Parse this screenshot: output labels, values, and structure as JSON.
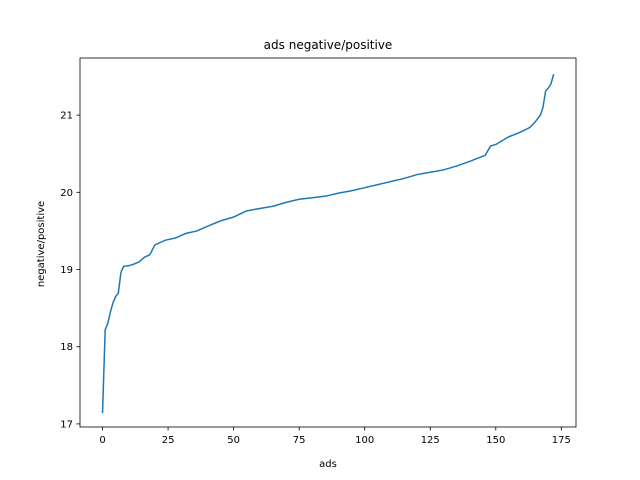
{
  "chart_data": {
    "type": "line",
    "title": "ads negative/positive",
    "xlabel": "ads",
    "ylabel": "negative/positive",
    "xlim": [
      -8.6,
      180.6
    ],
    "ylim": [
      16.96,
      21.74
    ],
    "xticks": [
      0,
      25,
      50,
      75,
      100,
      125,
      150,
      175
    ],
    "yticks": [
      17,
      18,
      19,
      20,
      21
    ],
    "grid": false,
    "legend": "none",
    "series": [
      {
        "color": "#1f77b4",
        "points": [
          [
            0,
            17.15
          ],
          [
            1,
            18.22
          ],
          [
            2,
            18.3
          ],
          [
            3,
            18.45
          ],
          [
            4,
            18.57
          ],
          [
            5,
            18.65
          ],
          [
            6,
            18.69
          ],
          [
            7,
            18.96
          ],
          [
            8,
            19.04
          ],
          [
            10,
            19.05
          ],
          [
            12,
            19.07
          ],
          [
            14,
            19.1
          ],
          [
            16,
            19.16
          ],
          [
            18,
            19.19
          ],
          [
            20,
            19.32
          ],
          [
            22,
            19.35
          ],
          [
            24,
            19.38
          ],
          [
            28,
            19.41
          ],
          [
            32,
            19.47
          ],
          [
            36,
            19.5
          ],
          [
            40,
            19.56
          ],
          [
            45,
            19.63
          ],
          [
            50,
            19.68
          ],
          [
            55,
            19.76
          ],
          [
            60,
            19.79
          ],
          [
            65,
            19.82
          ],
          [
            70,
            19.87
          ],
          [
            75,
            19.91
          ],
          [
            80,
            19.93
          ],
          [
            85,
            19.95
          ],
          [
            90,
            19.99
          ],
          [
            95,
            20.02
          ],
          [
            100,
            20.06
          ],
          [
            105,
            20.1
          ],
          [
            110,
            20.14
          ],
          [
            115,
            20.18
          ],
          [
            120,
            20.23
          ],
          [
            125,
            20.26
          ],
          [
            130,
            20.29
          ],
          [
            135,
            20.34
          ],
          [
            140,
            20.4
          ],
          [
            143,
            20.44
          ],
          [
            146,
            20.48
          ],
          [
            148,
            20.6
          ],
          [
            150,
            20.62
          ],
          [
            152,
            20.66
          ],
          [
            155,
            20.72
          ],
          [
            158,
            20.76
          ],
          [
            160,
            20.79
          ],
          [
            163,
            20.84
          ],
          [
            165,
            20.91
          ],
          [
            167,
            21.0
          ],
          [
            168,
            21.1
          ],
          [
            169,
            21.31
          ],
          [
            170,
            21.35
          ],
          [
            171,
            21.4
          ],
          [
            172,
            21.52
          ]
        ]
      }
    ]
  }
}
